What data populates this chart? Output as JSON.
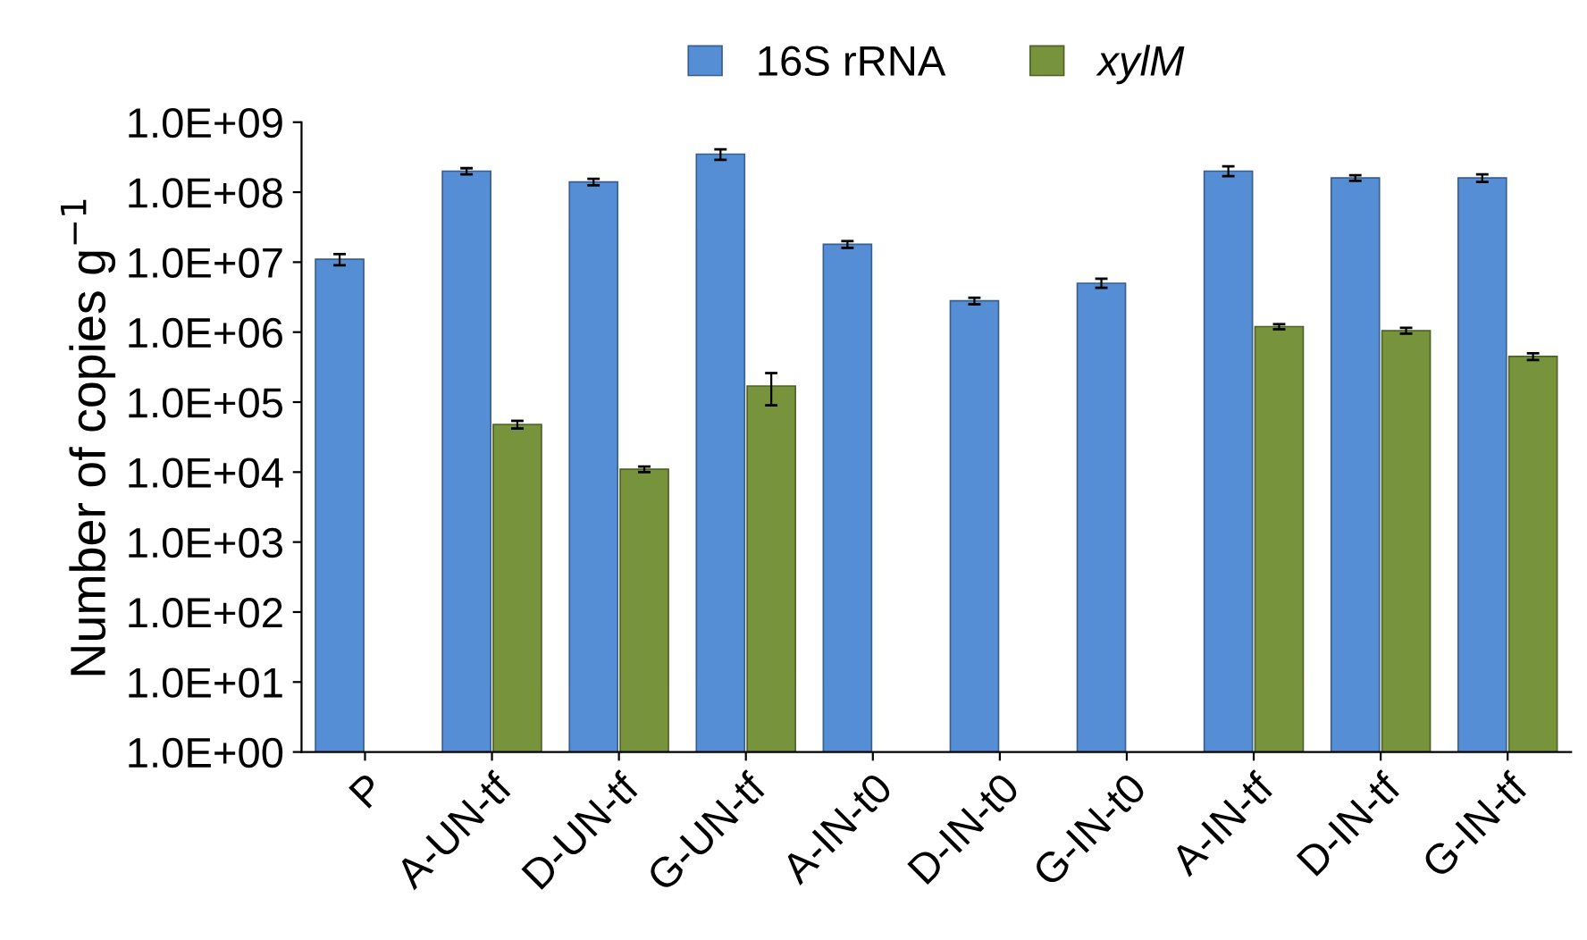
{
  "chart_data": {
    "type": "bar",
    "ylabel": "Number of copies g$^{−1}$",
    "categories": [
      "P",
      "A-UN-tf",
      "D-UN-tf",
      "G-UN-tf",
      "A-IN-t0",
      "D-IN-t0",
      "G-IN-t0",
      "A-IN-tf",
      "D-IN-tf",
      "G-IN-tf"
    ],
    "series": [
      {
        "name": "16S rRNA",
        "color": "#558ed5",
        "values": [
          11000000,
          200000000,
          140000000,
          350000000,
          18000000,
          2800000,
          5000000,
          200000000,
          160000000,
          160000000
        ],
        "errors": [
          [
            9000000,
            13000000
          ],
          [
            180000000,
            220000000
          ],
          [
            125000000,
            155000000
          ],
          [
            290000000,
            410000000
          ],
          [
            16000000,
            20000000
          ],
          [
            2500000,
            3100000
          ],
          [
            4300000,
            5800000
          ],
          [
            170000000,
            235000000
          ],
          [
            145000000,
            175000000
          ],
          [
            140000000,
            180000000
          ]
        ]
      },
      {
        "name": "xylM",
        "color": "#77933c",
        "values": [
          null,
          48000,
          11000,
          170000,
          null,
          null,
          null,
          1200000,
          1050000,
          450000
        ],
        "errors": [
          null,
          [
            42000,
            54000
          ],
          [
            10000,
            12000
          ],
          [
            90000,
            260000
          ],
          null,
          null,
          null,
          [
            1100000,
            1300000
          ],
          [
            950000,
            1150000
          ],
          [
            400000,
            500000
          ]
        ]
      }
    ],
    "log": true,
    "ylim": [
      1,
      1000000000
    ],
    "yticks": [
      {
        "value": 1,
        "label": "1.0E+00"
      },
      {
        "value": 10,
        "label": "1.0E+01"
      },
      {
        "value": 100,
        "label": "1.0E+02"
      },
      {
        "value": 1000,
        "label": "1.0E+03"
      },
      {
        "value": 10000,
        "label": "1.0E+04"
      },
      {
        "value": 100000,
        "label": "1.0E+05"
      },
      {
        "value": 1000000,
        "label": "1.0E+06"
      },
      {
        "value": 10000000,
        "label": "1.0E+07"
      },
      {
        "value": 100000000,
        "label": "1.0E+08"
      },
      {
        "value": 1000000000,
        "label": "1.0E+09"
      }
    ],
    "grid": false,
    "legend": "top"
  }
}
